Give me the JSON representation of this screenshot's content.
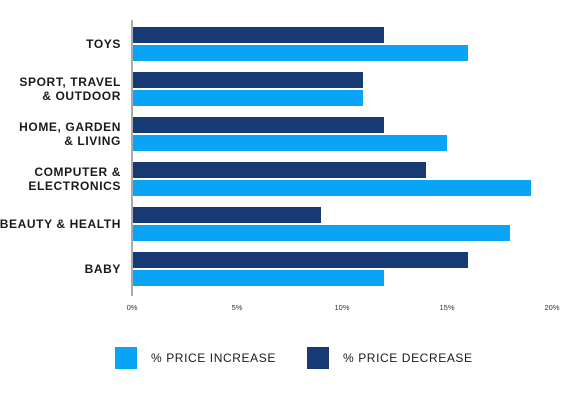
{
  "chart_data": {
    "type": "bar",
    "orientation": "horizontal",
    "categories": [
      "TOYS",
      "SPORT, TRAVEL\n& OUTDOOR",
      "HOME, GARDEN\n& LIVING",
      "COMPUTER &\nELECTRONICS",
      "BEAUTY & HEALTH",
      "BABY"
    ],
    "series": [
      {
        "name": "% PRICE DECREASE",
        "color": "#173a75",
        "values": [
          12,
          11,
          12,
          14,
          9,
          16
        ]
      },
      {
        "name": "% PRICE INCREASE",
        "color": "#0aa4f6",
        "values": [
          16,
          11,
          15,
          19,
          18,
          12
        ]
      }
    ],
    "xlim": [
      0,
      20
    ],
    "xticks": [
      0,
      5,
      10,
      15,
      20
    ],
    "xtick_labels": [
      "0%",
      "5%",
      "10%",
      "15%",
      "20%"
    ],
    "grid": false,
    "legend_position": "bottom"
  },
  "legend": {
    "items": [
      {
        "label": "% PRICE INCREASE",
        "color": "#0aa4f6"
      },
      {
        "label": "% PRICE DECREASE",
        "color": "#173a75"
      }
    ]
  }
}
